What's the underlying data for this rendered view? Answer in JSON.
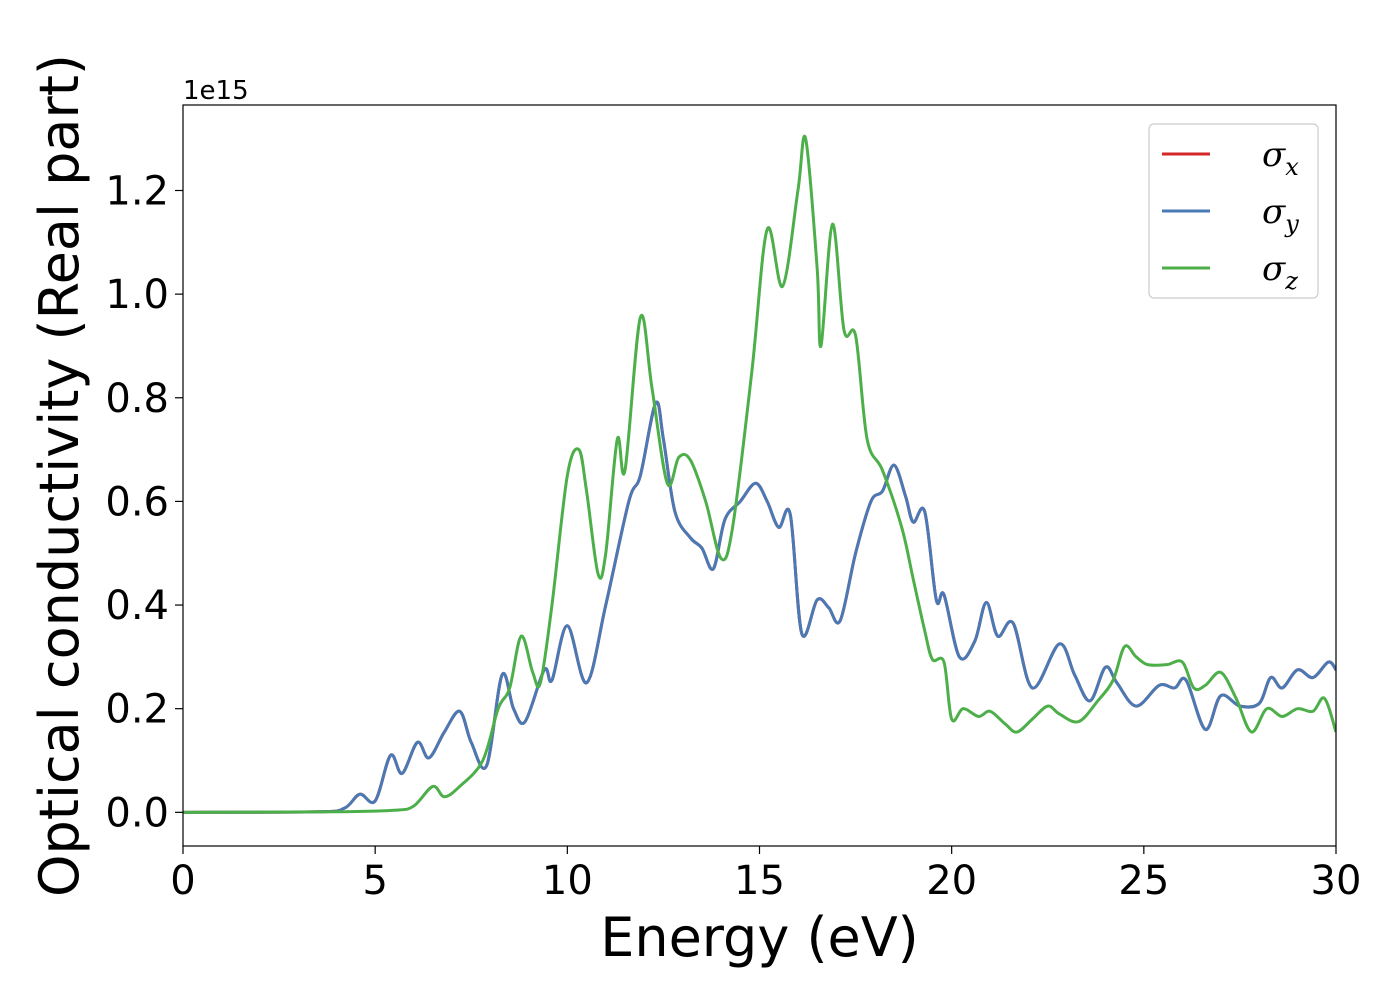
{
  "chart_data": {
    "type": "line",
    "xlabel": "Energy (eV)",
    "ylabel": "Optical conductivity (Real part)",
    "y_offset_label": "1e15",
    "xlim": [
      0,
      30
    ],
    "ylim": [
      -0.065,
      1.365
    ],
    "x_ticks": [
      "0",
      "5",
      "10",
      "15",
      "20",
      "25",
      "30"
    ],
    "y_ticks": [
      "0.0",
      "0.2",
      "0.4",
      "0.6",
      "0.8",
      "1.0",
      "1.2"
    ],
    "grid": false,
    "legend_position": "top-right",
    "series": [
      {
        "name": "σx",
        "legend_symbol": "σ",
        "legend_subscript": "x",
        "color": "#d62728",
        "points": [
          [
            0,
            0
          ],
          [
            3.5,
            0.001
          ],
          [
            4.2,
            0.008
          ],
          [
            4.6,
            0.035
          ],
          [
            5.0,
            0.022
          ],
          [
            5.4,
            0.11
          ],
          [
            5.7,
            0.075
          ],
          [
            6.1,
            0.135
          ],
          [
            6.4,
            0.105
          ],
          [
            6.8,
            0.155
          ],
          [
            7.2,
            0.195
          ],
          [
            7.5,
            0.135
          ],
          [
            7.9,
            0.09
          ],
          [
            8.3,
            0.265
          ],
          [
            8.6,
            0.2
          ],
          [
            8.9,
            0.175
          ],
          [
            9.4,
            0.275
          ],
          [
            9.6,
            0.255
          ],
          [
            10.0,
            0.36
          ],
          [
            10.5,
            0.25
          ],
          [
            11.0,
            0.4
          ],
          [
            11.6,
            0.6
          ],
          [
            11.9,
            0.65
          ],
          [
            12.3,
            0.79
          ],
          [
            12.5,
            0.72
          ],
          [
            12.8,
            0.58
          ],
          [
            13.2,
            0.53
          ],
          [
            13.5,
            0.51
          ],
          [
            13.8,
            0.47
          ],
          [
            14.1,
            0.565
          ],
          [
            14.5,
            0.6
          ],
          [
            14.9,
            0.635
          ],
          [
            15.2,
            0.6
          ],
          [
            15.5,
            0.55
          ],
          [
            15.8,
            0.575
          ],
          [
            16.1,
            0.345
          ],
          [
            16.5,
            0.41
          ],
          [
            16.8,
            0.395
          ],
          [
            17.1,
            0.37
          ],
          [
            17.5,
            0.5
          ],
          [
            17.9,
            0.6
          ],
          [
            18.2,
            0.62
          ],
          [
            18.5,
            0.67
          ],
          [
            18.8,
            0.61
          ],
          [
            19.0,
            0.56
          ],
          [
            19.3,
            0.58
          ],
          [
            19.6,
            0.41
          ],
          [
            19.8,
            0.42
          ],
          [
            20.2,
            0.3
          ],
          [
            20.6,
            0.33
          ],
          [
            20.9,
            0.405
          ],
          [
            21.2,
            0.34
          ],
          [
            21.6,
            0.365
          ],
          [
            22.1,
            0.24
          ],
          [
            22.8,
            0.325
          ],
          [
            23.2,
            0.265
          ],
          [
            23.6,
            0.215
          ],
          [
            24.0,
            0.28
          ],
          [
            24.3,
            0.25
          ],
          [
            24.8,
            0.205
          ],
          [
            25.4,
            0.245
          ],
          [
            25.8,
            0.24
          ],
          [
            26.1,
            0.255
          ],
          [
            26.6,
            0.16
          ],
          [
            27.0,
            0.225
          ],
          [
            27.5,
            0.205
          ],
          [
            28.0,
            0.21
          ],
          [
            28.3,
            0.26
          ],
          [
            28.6,
            0.24
          ],
          [
            29.0,
            0.275
          ],
          [
            29.4,
            0.26
          ],
          [
            29.8,
            0.29
          ],
          [
            30.0,
            0.275
          ]
        ]
      },
      {
        "name": "σy",
        "legend_symbol": "σ",
        "legend_subscript": "y",
        "color": "#4a7ab5",
        "points": [
          [
            0,
            0
          ],
          [
            3.5,
            0.001
          ],
          [
            4.2,
            0.008
          ],
          [
            4.6,
            0.035
          ],
          [
            5.0,
            0.022
          ],
          [
            5.4,
            0.11
          ],
          [
            5.7,
            0.075
          ],
          [
            6.1,
            0.135
          ],
          [
            6.4,
            0.105
          ],
          [
            6.8,
            0.155
          ],
          [
            7.2,
            0.195
          ],
          [
            7.5,
            0.135
          ],
          [
            7.9,
            0.09
          ],
          [
            8.3,
            0.265
          ],
          [
            8.6,
            0.2
          ],
          [
            8.9,
            0.175
          ],
          [
            9.4,
            0.275
          ],
          [
            9.6,
            0.255
          ],
          [
            10.0,
            0.36
          ],
          [
            10.5,
            0.25
          ],
          [
            11.0,
            0.4
          ],
          [
            11.6,
            0.6
          ],
          [
            11.9,
            0.65
          ],
          [
            12.3,
            0.79
          ],
          [
            12.5,
            0.72
          ],
          [
            12.8,
            0.58
          ],
          [
            13.2,
            0.53
          ],
          [
            13.5,
            0.51
          ],
          [
            13.8,
            0.47
          ],
          [
            14.1,
            0.565
          ],
          [
            14.5,
            0.6
          ],
          [
            14.9,
            0.635
          ],
          [
            15.2,
            0.6
          ],
          [
            15.5,
            0.55
          ],
          [
            15.8,
            0.575
          ],
          [
            16.1,
            0.345
          ],
          [
            16.5,
            0.41
          ],
          [
            16.8,
            0.395
          ],
          [
            17.1,
            0.37
          ],
          [
            17.5,
            0.5
          ],
          [
            17.9,
            0.6
          ],
          [
            18.2,
            0.62
          ],
          [
            18.5,
            0.67
          ],
          [
            18.8,
            0.61
          ],
          [
            19.0,
            0.56
          ],
          [
            19.3,
            0.58
          ],
          [
            19.6,
            0.41
          ],
          [
            19.8,
            0.42
          ],
          [
            20.2,
            0.3
          ],
          [
            20.6,
            0.33
          ],
          [
            20.9,
            0.405
          ],
          [
            21.2,
            0.34
          ],
          [
            21.6,
            0.365
          ],
          [
            22.1,
            0.24
          ],
          [
            22.8,
            0.325
          ],
          [
            23.2,
            0.265
          ],
          [
            23.6,
            0.215
          ],
          [
            24.0,
            0.28
          ],
          [
            24.3,
            0.25
          ],
          [
            24.8,
            0.205
          ],
          [
            25.4,
            0.245
          ],
          [
            25.8,
            0.24
          ],
          [
            26.1,
            0.255
          ],
          [
            26.6,
            0.16
          ],
          [
            27.0,
            0.225
          ],
          [
            27.5,
            0.205
          ],
          [
            28.0,
            0.21
          ],
          [
            28.3,
            0.26
          ],
          [
            28.6,
            0.24
          ],
          [
            29.0,
            0.275
          ],
          [
            29.4,
            0.26
          ],
          [
            29.8,
            0.29
          ],
          [
            30.0,
            0.275
          ]
        ]
      },
      {
        "name": "σz",
        "legend_symbol": "σ",
        "legend_subscript": "z",
        "color": "#4daf4a",
        "points": [
          [
            0,
            0
          ],
          [
            4.0,
            0.001
          ],
          [
            5.5,
            0.004
          ],
          [
            6.0,
            0.012
          ],
          [
            6.5,
            0.05
          ],
          [
            6.8,
            0.03
          ],
          [
            7.2,
            0.05
          ],
          [
            7.8,
            0.1
          ],
          [
            8.2,
            0.2
          ],
          [
            8.5,
            0.24
          ],
          [
            8.8,
            0.34
          ],
          [
            9.1,
            0.27
          ],
          [
            9.3,
            0.25
          ],
          [
            9.6,
            0.4
          ],
          [
            10.0,
            0.65
          ],
          [
            10.3,
            0.7
          ],
          [
            10.5,
            0.62
          ],
          [
            10.8,
            0.46
          ],
          [
            11.0,
            0.5
          ],
          [
            11.3,
            0.72
          ],
          [
            11.5,
            0.66
          ],
          [
            11.9,
            0.955
          ],
          [
            12.2,
            0.82
          ],
          [
            12.6,
            0.635
          ],
          [
            12.9,
            0.685
          ],
          [
            13.2,
            0.68
          ],
          [
            13.6,
            0.6
          ],
          [
            14.0,
            0.49
          ],
          [
            14.3,
            0.55
          ],
          [
            14.8,
            0.85
          ],
          [
            15.2,
            1.125
          ],
          [
            15.6,
            1.015
          ],
          [
            16.0,
            1.2
          ],
          [
            16.2,
            1.3
          ],
          [
            16.5,
            1.05
          ],
          [
            16.6,
            0.9
          ],
          [
            16.9,
            1.135
          ],
          [
            17.2,
            0.93
          ],
          [
            17.5,
            0.92
          ],
          [
            17.8,
            0.72
          ],
          [
            18.2,
            0.66
          ],
          [
            18.7,
            0.55
          ],
          [
            19.0,
            0.45
          ],
          [
            19.3,
            0.35
          ],
          [
            19.5,
            0.295
          ],
          [
            19.8,
            0.29
          ],
          [
            20.0,
            0.18
          ],
          [
            20.3,
            0.2
          ],
          [
            20.7,
            0.185
          ],
          [
            21.0,
            0.195
          ],
          [
            21.4,
            0.17
          ],
          [
            21.7,
            0.155
          ],
          [
            22.1,
            0.18
          ],
          [
            22.5,
            0.205
          ],
          [
            22.8,
            0.19
          ],
          [
            23.3,
            0.175
          ],
          [
            23.8,
            0.215
          ],
          [
            24.2,
            0.255
          ],
          [
            24.5,
            0.32
          ],
          [
            24.8,
            0.3
          ],
          [
            25.1,
            0.285
          ],
          [
            25.6,
            0.285
          ],
          [
            26.0,
            0.29
          ],
          [
            26.3,
            0.24
          ],
          [
            26.6,
            0.245
          ],
          [
            27.0,
            0.27
          ],
          [
            27.4,
            0.22
          ],
          [
            27.8,
            0.155
          ],
          [
            28.2,
            0.2
          ],
          [
            28.6,
            0.185
          ],
          [
            29.0,
            0.2
          ],
          [
            29.4,
            0.195
          ],
          [
            29.7,
            0.22
          ],
          [
            30.0,
            0.155
          ]
        ]
      }
    ]
  }
}
